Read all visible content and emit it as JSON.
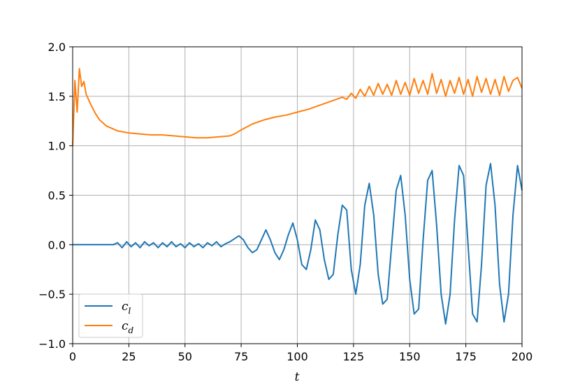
{
  "chart_data": {
    "type": "line",
    "xlabel": "t",
    "ylabel": "",
    "xlim": [
      0,
      200
    ],
    "ylim": [
      -1.0,
      2.0
    ],
    "xticks": [
      "0",
      "25",
      "50",
      "75",
      "100",
      "125",
      "150",
      "175",
      "200"
    ],
    "yticks": [
      "−1.0",
      "−0.5",
      "0.0",
      "0.5",
      "1.0",
      "1.5",
      "2.0"
    ],
    "grid": true,
    "legend_position": "lower-left",
    "legend": [
      {
        "symbol": "c",
        "subscript": "l",
        "color": "#1f77b4"
      },
      {
        "symbol": "c",
        "subscript": "d",
        "color": "#ff7f0e"
      }
    ],
    "series": [
      {
        "color": "#1f77b4",
        "x": [
          0,
          5,
          10,
          15,
          18,
          20,
          22,
          24,
          26,
          28,
          30,
          32,
          34,
          36,
          38,
          40,
          42,
          44,
          46,
          48,
          50,
          52,
          54,
          56,
          58,
          60,
          62,
          64,
          66,
          68,
          70,
          72,
          74,
          76,
          78,
          80,
          82,
          84,
          86,
          88,
          90,
          92,
          94,
          96,
          98,
          100,
          102,
          104,
          106,
          108,
          110,
          112,
          114,
          116,
          118,
          120,
          122,
          124,
          126,
          128,
          130,
          132,
          134,
          136,
          138,
          140,
          142,
          144,
          146,
          148,
          150,
          152,
          154,
          156,
          158,
          160,
          162,
          164,
          166,
          168,
          170,
          172,
          174,
          176,
          178,
          180,
          182,
          184,
          186,
          188,
          190,
          192,
          194,
          196,
          198,
          200
        ],
        "y": [
          0,
          0,
          0,
          0,
          0,
          0.02,
          -0.03,
          0.03,
          -0.02,
          0.02,
          -0.03,
          0.03,
          -0.01,
          0.02,
          -0.03,
          0.02,
          -0.02,
          0.03,
          -0.02,
          0.01,
          -0.03,
          0.02,
          -0.02,
          0.01,
          -0.03,
          0.02,
          -0.01,
          0.03,
          -0.02,
          0.01,
          0.03,
          0.06,
          0.09,
          0.05,
          -0.03,
          -0.08,
          -0.05,
          0.05,
          0.15,
          0.05,
          -0.08,
          -0.15,
          -0.05,
          0.1,
          0.22,
          0.05,
          -0.2,
          -0.25,
          -0.05,
          0.25,
          0.15,
          -0.15,
          -0.35,
          -0.3,
          0.1,
          0.4,
          0.35,
          -0.25,
          -0.5,
          -0.2,
          0.4,
          0.62,
          0.3,
          -0.3,
          -0.6,
          -0.55,
          0.0,
          0.55,
          0.7,
          0.3,
          -0.35,
          -0.7,
          -0.65,
          0.05,
          0.65,
          0.75,
          0.2,
          -0.5,
          -0.8,
          -0.5,
          0.25,
          0.8,
          0.7,
          0.0,
          -0.7,
          -0.78,
          -0.2,
          0.6,
          0.82,
          0.4,
          -0.4,
          -0.78,
          -0.5,
          0.3,
          0.8,
          0.55
        ]
      },
      {
        "color": "#ff7f0e",
        "x": [
          0,
          1,
          2,
          3,
          4,
          5,
          6,
          8,
          10,
          12,
          15,
          18,
          20,
          25,
          30,
          35,
          40,
          45,
          50,
          55,
          60,
          65,
          70,
          72,
          75,
          80,
          85,
          90,
          95,
          100,
          105,
          110,
          115,
          120,
          122,
          124,
          126,
          128,
          130,
          132,
          134,
          136,
          138,
          140,
          142,
          144,
          146,
          148,
          150,
          152,
          154,
          156,
          158,
          160,
          162,
          164,
          166,
          168,
          170,
          172,
          174,
          176,
          178,
          180,
          182,
          184,
          186,
          188,
          190,
          192,
          194,
          196,
          198,
          200
        ],
        "y": [
          1.0,
          1.66,
          1.34,
          1.78,
          1.6,
          1.65,
          1.52,
          1.42,
          1.33,
          1.26,
          1.2,
          1.17,
          1.15,
          1.13,
          1.12,
          1.11,
          1.11,
          1.1,
          1.09,
          1.08,
          1.08,
          1.09,
          1.1,
          1.12,
          1.16,
          1.22,
          1.26,
          1.29,
          1.31,
          1.34,
          1.37,
          1.41,
          1.45,
          1.49,
          1.47,
          1.53,
          1.48,
          1.57,
          1.5,
          1.6,
          1.51,
          1.63,
          1.52,
          1.62,
          1.51,
          1.66,
          1.52,
          1.64,
          1.51,
          1.68,
          1.53,
          1.66,
          1.52,
          1.73,
          1.53,
          1.67,
          1.5,
          1.66,
          1.53,
          1.69,
          1.52,
          1.67,
          1.5,
          1.7,
          1.54,
          1.68,
          1.52,
          1.67,
          1.51,
          1.7,
          1.55,
          1.66,
          1.69,
          1.58
        ]
      }
    ]
  }
}
